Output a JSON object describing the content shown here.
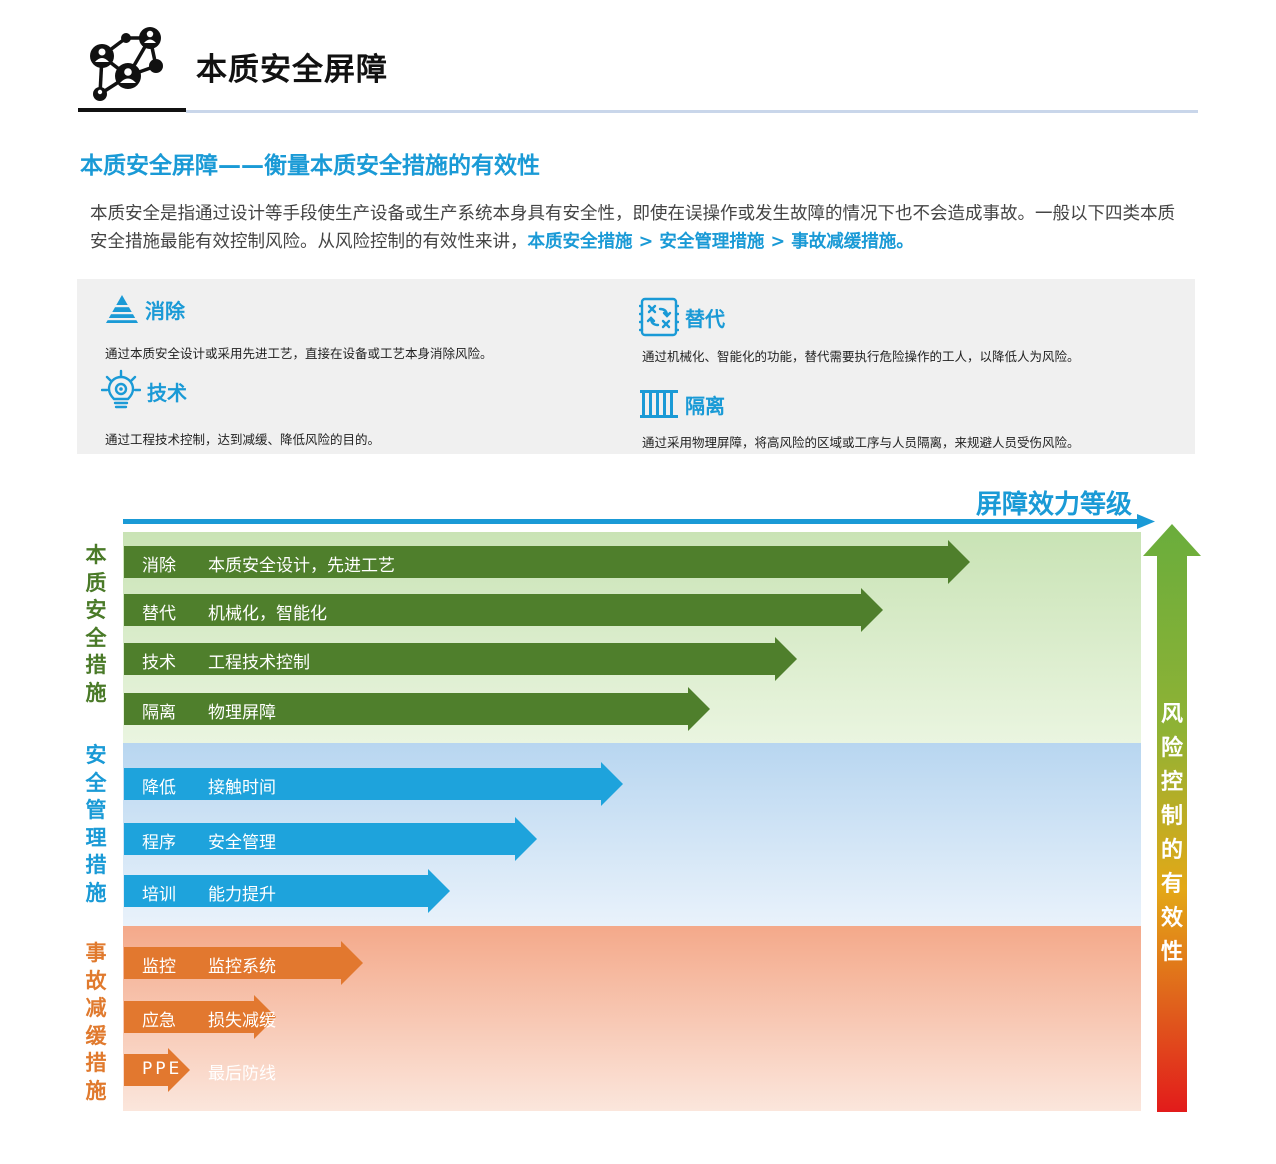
{
  "header": {
    "title": "本质安全屏障"
  },
  "subtitle": "本质安全屏障——衡量本质安全措施的有效性",
  "intro": {
    "text": "本质安全是指通过设计等手段使生产设备或生产系统本身具有安全性，即使在误操作或发生故障的情况下也不会造成事故。一般以下四类本质安全措施最能有效控制风险。从风险控制的有效性来讲，",
    "highlight": "本质安全措施 > 安全管理措施 > 事故减缓措施。"
  },
  "categories": [
    {
      "icon": "pyramid-icon",
      "title": "消除",
      "desc": "通过本质安全设计或采用先进工艺，直接在设备或工艺本身消除风险。"
    },
    {
      "icon": "substitution-icon",
      "title": "替代",
      "desc": "通过机械化、智能化的功能，替代需要执行危险操作的工人，以降低人为风险。"
    },
    {
      "icon": "lightbulb-icon",
      "title": "技术",
      "desc": "通过工程技术控制，达到减缓、降低风险的目的。"
    },
    {
      "icon": "barrier-icon",
      "title": "隔离",
      "desc": "通过采用物理屏障，将高风险的区域或工序与人员隔离，来规避人员受伤风险。"
    }
  ],
  "chart": {
    "top_axis_label": "屏障效力等级",
    "risk_axis_label": "风险控制的有效性",
    "groups": [
      {
        "label": "本质安全措施",
        "color": "#4f7f2c",
        "items": [
          {
            "key": "消除",
            "value": "本质安全设计，先进工艺",
            "level": 10
          },
          {
            "key": "替代",
            "value": "机械化，智能化",
            "level": 9
          },
          {
            "key": "技术",
            "value": "工程技术控制",
            "level": 8
          },
          {
            "key": "隔离",
            "value": "物理屏障",
            "level": 7
          }
        ]
      },
      {
        "label": "安全管理措施",
        "color": "#1ea3dc",
        "items": [
          {
            "key": "降低",
            "value": "接触时间",
            "level": 6
          },
          {
            "key": "程序",
            "value": "安全管理",
            "level": 5
          },
          {
            "key": "培训",
            "value": "能力提升",
            "level": 4
          }
        ]
      },
      {
        "label": "事故减缓措施",
        "color": "#e2782f",
        "items": [
          {
            "key": "监控",
            "value": "监控系统",
            "level": 3
          },
          {
            "key": "应急",
            "value": "损失减缓",
            "level": 2
          },
          {
            "key": "PPE",
            "value": "最后防线",
            "level": 1
          }
        ]
      }
    ]
  }
}
